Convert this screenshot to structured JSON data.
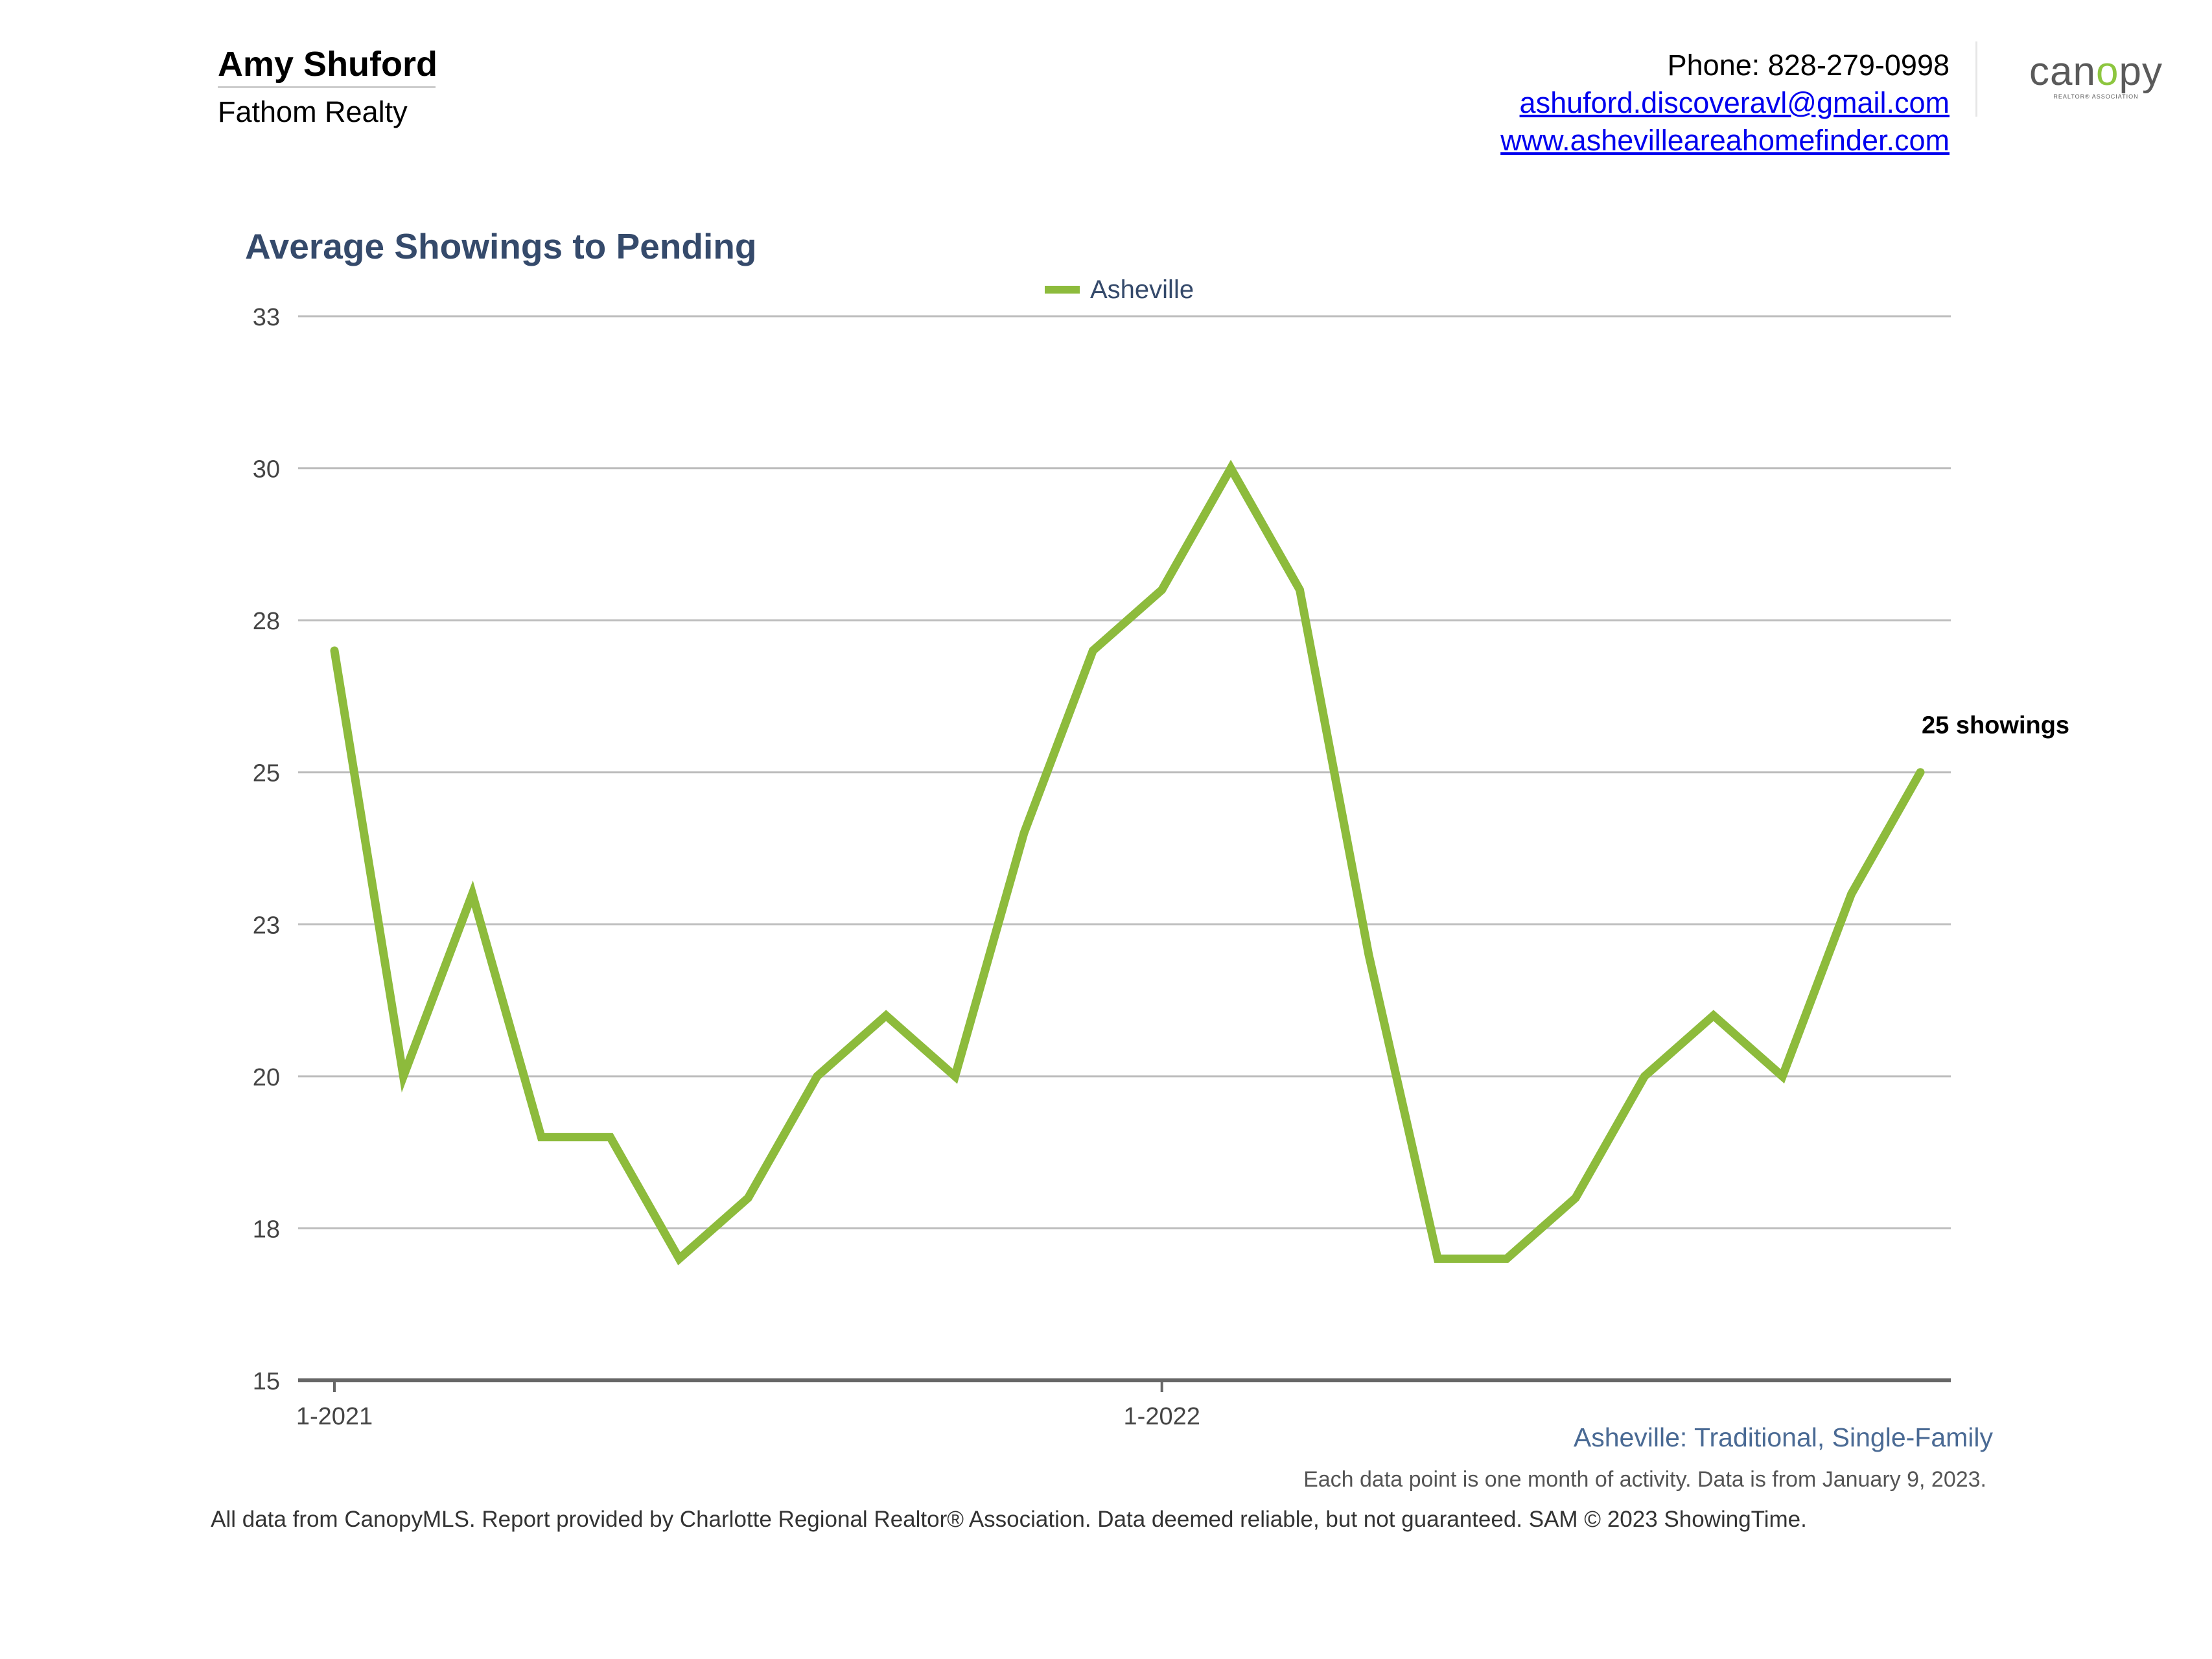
{
  "header": {
    "agent_name": "Amy Shuford",
    "company": "Fathom Realty",
    "phone": "Phone: 828-279-0998",
    "email": "ashuford.discoveravl@gmail.com",
    "website": "www.ashevilleareahomefinder.com",
    "logo_text": "canopy",
    "logo_subtext": "REALTOR® ASSOCIATION",
    "logo_accent_color": "#8dc63f"
  },
  "chart_data": {
    "type": "line",
    "title": "Average Showings to Pending",
    "x": [
      "1-2021",
      "2-2021",
      "3-2021",
      "4-2021",
      "5-2021",
      "6-2021",
      "7-2021",
      "8-2021",
      "9-2021",
      "10-2021",
      "11-2021",
      "12-2021",
      "1-2022",
      "2-2022",
      "3-2022",
      "4-2022",
      "5-2022",
      "6-2022",
      "7-2022",
      "8-2022",
      "9-2022",
      "10-2022",
      "11-2022",
      "12-2022"
    ],
    "x_tick_labels": [
      "1-2021",
      "1-2022"
    ],
    "series": [
      {
        "name": "Asheville",
        "color": "#8dbb3c",
        "values": [
          27,
          20,
          23,
          19,
          19,
          17,
          18,
          20,
          21,
          20,
          24,
          27,
          28,
          30,
          28,
          22,
          17,
          17,
          18,
          20,
          21,
          20,
          23,
          25
        ]
      }
    ],
    "y_tick_labels": [
      "15",
      "18",
      "20",
      "23",
      "25",
      "28",
      "30",
      "33"
    ],
    "ylim": [
      15,
      32.5
    ],
    "grid": true,
    "legend_position": "top-center",
    "annotation": {
      "text": "25 showings",
      "series": "Asheville",
      "index": 23
    }
  },
  "footer": {
    "subtitle": "Asheville: Traditional, Single-Family",
    "note": "Each data point is one month of activity. Data is from January 9, 2023.",
    "disclaimer": "All data from CanopyMLS. Report provided by Charlotte Regional Realtor® Association. Data deemed reliable, but not guaranteed. SAM © 2023 ShowingTime."
  }
}
